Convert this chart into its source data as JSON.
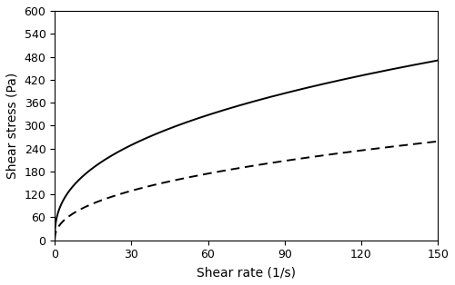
{
  "title": "",
  "xlabel": "Shear rate (1/s)",
  "ylabel": "Shear stress (Pa)",
  "xlim": [
    0,
    150
  ],
  "ylim": [
    0,
    600
  ],
  "xticks": [
    0,
    30,
    60,
    90,
    120,
    150
  ],
  "yticks": [
    0,
    60,
    120,
    180,
    240,
    300,
    360,
    420,
    480,
    540,
    600
  ],
  "forward_color": "#000000",
  "downward_color": "#000000",
  "background_color": "#ffffff",
  "forward_K": 65.0,
  "forward_n": 0.395,
  "forward_tau0": 0.0,
  "downward_K": 30.0,
  "downward_n": 0.43,
  "downward_tau0": 0.0,
  "line_width": 1.4,
  "dash_pattern": [
    5,
    3
  ]
}
